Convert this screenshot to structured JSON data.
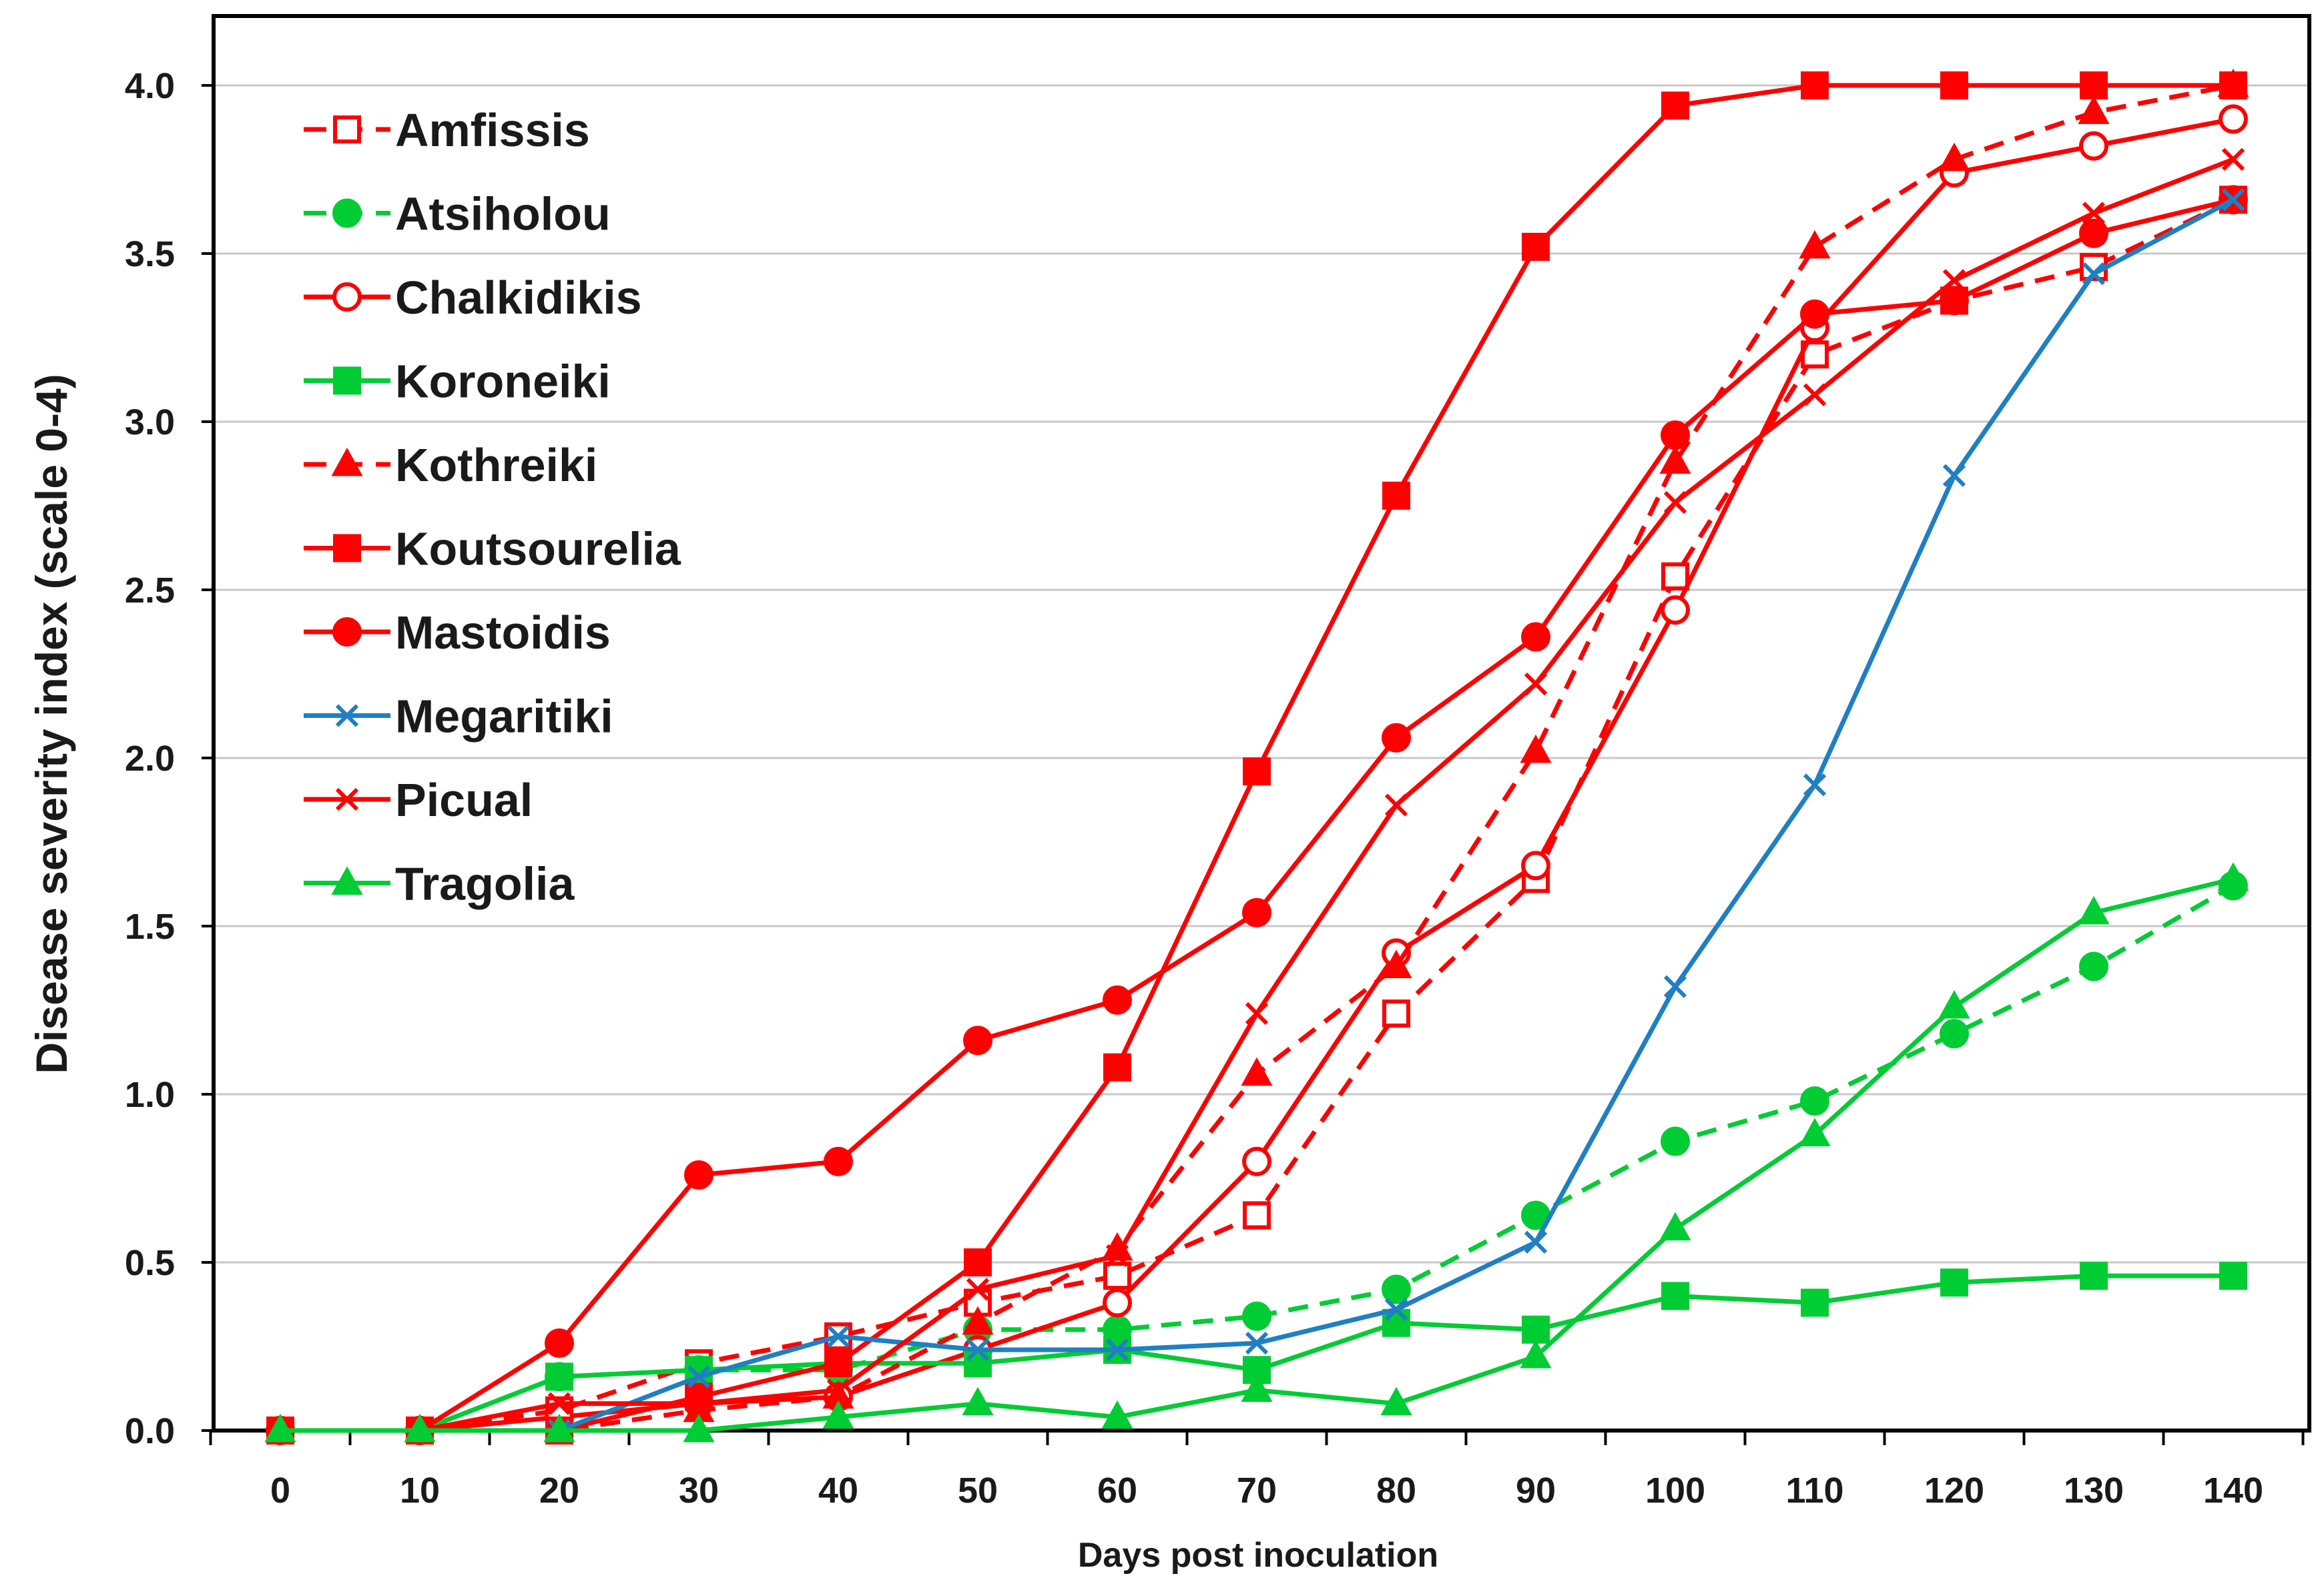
{
  "chart_data": {
    "type": "line",
    "title": "",
    "xlabel": "Days post inoculation",
    "ylabel": "Disease severity index (scale 0-4)",
    "x": [
      0,
      10,
      20,
      30,
      40,
      50,
      60,
      70,
      80,
      90,
      100,
      110,
      120,
      130,
      140
    ],
    "xlim": [
      -5,
      145
    ],
    "ylim": [
      0,
      4.2
    ],
    "yticks": [
      0.0,
      0.5,
      1.0,
      1.5,
      2.0,
      2.5,
      3.0,
      3.5,
      4.0
    ],
    "ytick_labels": [
      "0.0",
      "0.5",
      "1.0",
      "1.5",
      "2.0",
      "2.5",
      "3.0",
      "3.5",
      "4.0"
    ],
    "xtick_labels": [
      "0",
      "10",
      "20",
      "30",
      "40",
      "50",
      "60",
      "70",
      "80",
      "90",
      "100",
      "110",
      "120",
      "130",
      "140"
    ],
    "grid": "horizontal",
    "legend_position": "top-left",
    "series": [
      {
        "name": "Amfissis",
        "color": "#ff0000",
        "dash": "dashed",
        "marker": "square-open",
        "values": [
          0,
          0,
          0.06,
          0.2,
          0.28,
          0.38,
          0.46,
          0.64,
          1.24,
          1.64,
          2.54,
          3.2,
          3.36,
          3.46,
          3.66
        ]
      },
      {
        "name": "Atsiholou",
        "color": "#00cc33",
        "dash": "dashed",
        "marker": "circle",
        "values": [
          0,
          0,
          0.16,
          0.18,
          0.18,
          0.3,
          0.3,
          0.34,
          0.42,
          0.64,
          0.86,
          0.98,
          1.18,
          1.38,
          1.62
        ]
      },
      {
        "name": "Chalkidikis",
        "color": "#ff0000",
        "dash": "solid",
        "marker": "circle-open",
        "values": [
          0,
          0,
          0.04,
          0.08,
          0.1,
          0.24,
          0.38,
          0.8,
          1.42,
          1.68,
          2.44,
          3.28,
          3.74,
          3.82,
          3.9
        ]
      },
      {
        "name": "Koroneiki",
        "color": "#00cc33",
        "dash": "solid",
        "marker": "square",
        "values": [
          0,
          0,
          0.16,
          0.18,
          0.2,
          0.2,
          0.24,
          0.18,
          0.32,
          0.3,
          0.4,
          0.38,
          0.44,
          0.46,
          0.46
        ]
      },
      {
        "name": "Kothreiki",
        "color": "#ff0000",
        "dash": "dashed",
        "marker": "triangle",
        "values": [
          0,
          0,
          0,
          0.06,
          0.1,
          0.32,
          0.54,
          1.06,
          1.38,
          2.02,
          2.88,
          3.52,
          3.78,
          3.92,
          4.0
        ]
      },
      {
        "name": "Koutsourelia",
        "color": "#ff0000",
        "dash": "solid",
        "marker": "square",
        "values": [
          0,
          0,
          0,
          0.1,
          0.2,
          0.5,
          1.08,
          1.96,
          2.78,
          3.52,
          3.94,
          4.0,
          4.0,
          4.0,
          4.0
        ]
      },
      {
        "name": "Mastoidis",
        "color": "#ff0000",
        "dash": "solid",
        "marker": "circle",
        "values": [
          0,
          0,
          0.26,
          0.76,
          0.8,
          1.16,
          1.28,
          1.54,
          2.06,
          2.36,
          2.96,
          3.32,
          3.36,
          3.56,
          3.66
        ]
      },
      {
        "name": "Megaritiki",
        "color": "#1f7fc4",
        "dash": "solid",
        "marker": "x",
        "values": [
          0,
          0,
          0,
          0.16,
          0.28,
          0.24,
          0.24,
          0.26,
          0.36,
          0.56,
          1.32,
          1.92,
          2.84,
          3.44,
          3.66
        ]
      },
      {
        "name": "Picual",
        "color": "#ff0000",
        "dash": "solid",
        "marker": "x",
        "values": [
          0,
          0,
          0.08,
          0.08,
          0.12,
          0.42,
          0.52,
          1.24,
          1.86,
          2.22,
          2.76,
          3.08,
          3.42,
          3.62,
          3.78
        ]
      },
      {
        "name": "Tragolia",
        "color": "#00cc33",
        "dash": "solid",
        "marker": "triangle",
        "values": [
          0,
          0,
          0,
          0,
          0.04,
          0.08,
          0.04,
          0.12,
          0.08,
          0.22,
          0.6,
          0.88,
          1.26,
          1.54,
          1.64
        ]
      }
    ]
  }
}
